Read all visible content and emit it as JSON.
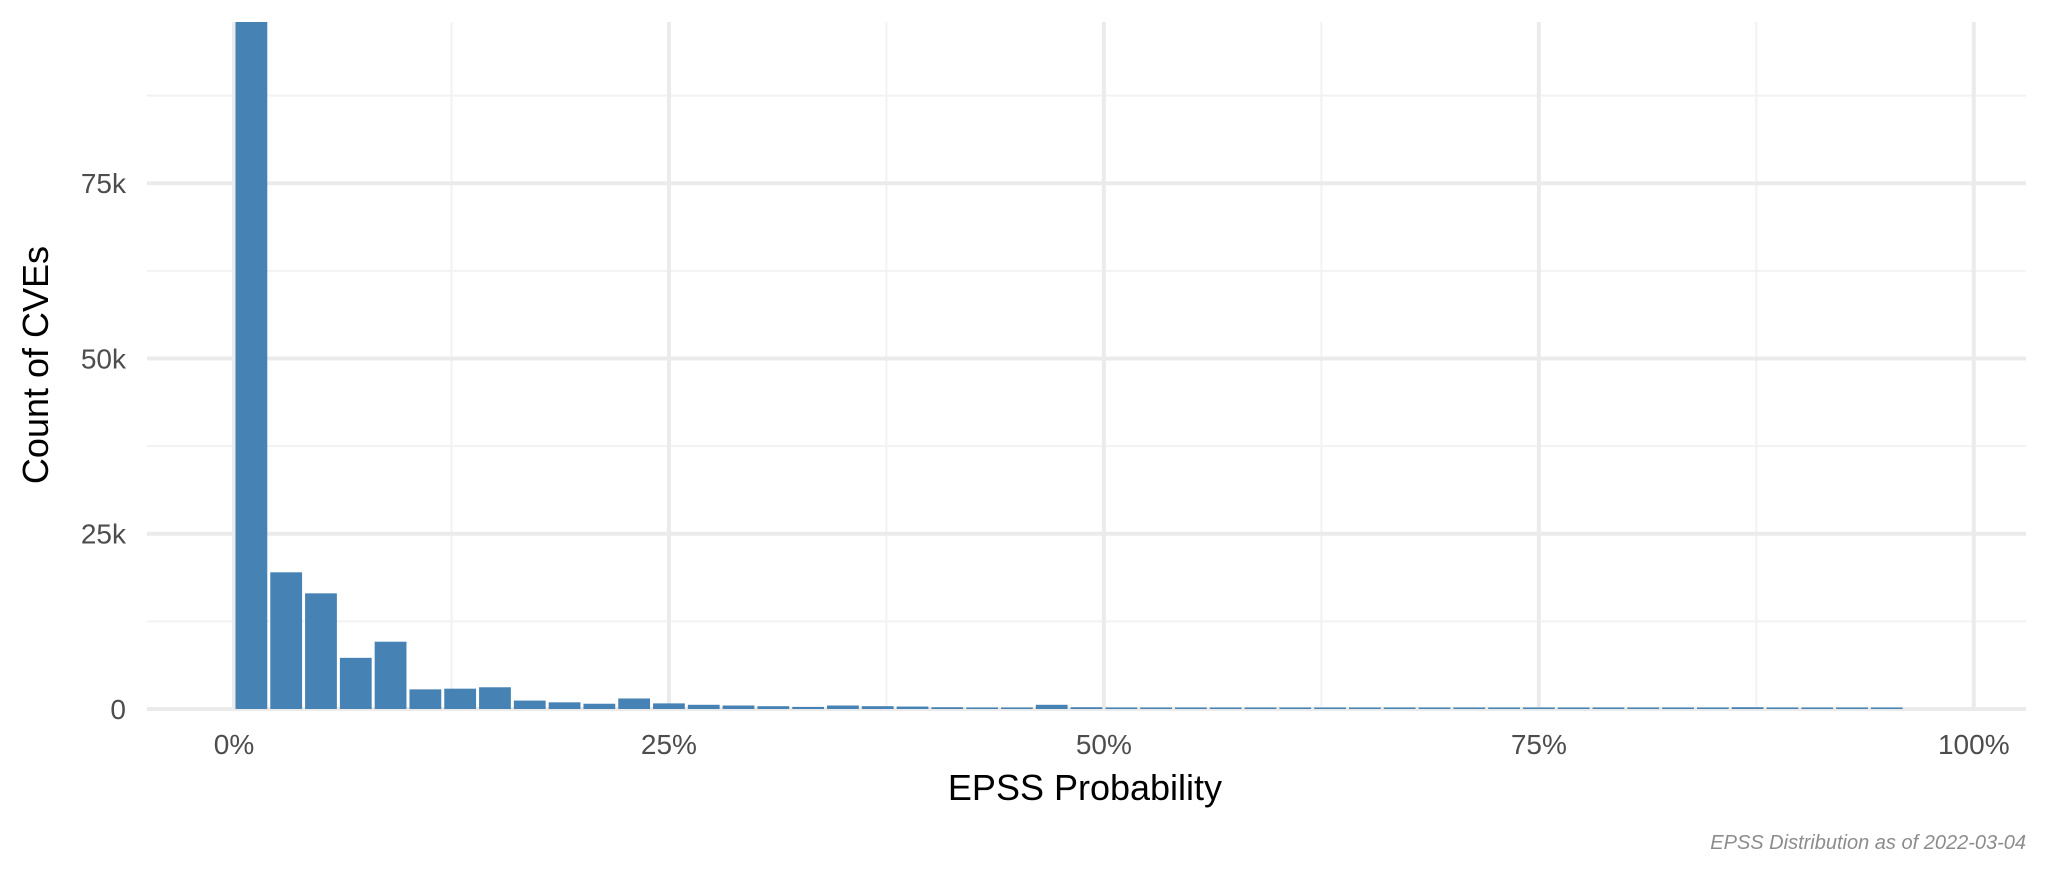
{
  "chart_data": {
    "type": "bar",
    "subtype": "histogram",
    "xlabel": "EPSS Probability",
    "ylabel": "Count of CVEs",
    "caption": "EPSS Distribution as of 2022-03-04",
    "bar_color": "#4682B4",
    "grid": true,
    "xlim": [
      -0.05,
      1.03
    ],
    "ylim": [
      0,
      98000
    ],
    "x_ticks": [
      {
        "value": 0,
        "label": "0%"
      },
      {
        "value": 0.25,
        "label": "25%"
      },
      {
        "value": 0.5,
        "label": "50%"
      },
      {
        "value": 0.75,
        "label": "75%"
      },
      {
        "value": 1.0,
        "label": "100%"
      }
    ],
    "y_ticks": [
      {
        "value": 0,
        "label": "0"
      },
      {
        "value": 25000,
        "label": "25k"
      },
      {
        "value": 50000,
        "label": "50k"
      },
      {
        "value": 75000,
        "label": "75k"
      }
    ],
    "bin_width": 0.02,
    "x": [
      0.01,
      0.03,
      0.05,
      0.07,
      0.09,
      0.11,
      0.13,
      0.15,
      0.17,
      0.19,
      0.21,
      0.23,
      0.25,
      0.27,
      0.29,
      0.31,
      0.33,
      0.35,
      0.37,
      0.39,
      0.41,
      0.43,
      0.45,
      0.47,
      0.49,
      0.51,
      0.53,
      0.55,
      0.57,
      0.59,
      0.61,
      0.63,
      0.65,
      0.67,
      0.69,
      0.71,
      0.73,
      0.75,
      0.77,
      0.79,
      0.81,
      0.83,
      0.85,
      0.87,
      0.89,
      0.91,
      0.93,
      0.95
    ],
    "values": [
      98000,
      19500,
      16500,
      7300,
      9600,
      2800,
      2900,
      3100,
      1200,
      950,
      750,
      1500,
      800,
      600,
      500,
      400,
      300,
      500,
      400,
      350,
      250,
      200,
      200,
      600,
      250,
      150,
      200,
      150,
      100,
      100,
      100,
      100,
      100,
      100,
      100,
      100,
      100,
      100,
      100,
      100,
      100,
      100,
      100,
      250,
      100,
      100,
      100,
      100
    ],
    "clipped_at_top": [
      true
    ]
  }
}
